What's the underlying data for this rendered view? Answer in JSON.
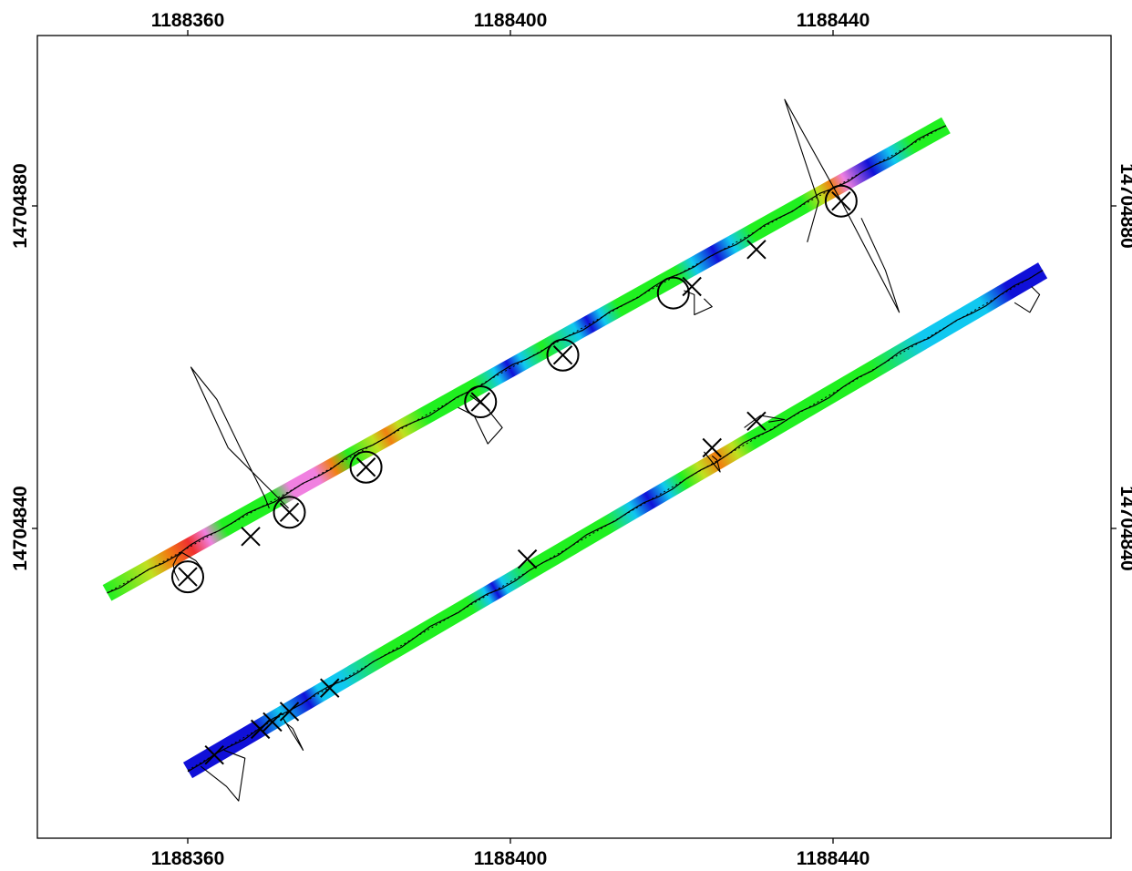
{
  "chart_data": {
    "type": "scatter",
    "title": "",
    "xlabel": "",
    "ylabel": "",
    "xlim": [
      1188341.5,
      1188474.5
    ],
    "ylim": [
      14704799.5,
      14704900.0
    ],
    "x_ticks": [
      {
        "value": 1188360,
        "label": "1188360"
      },
      {
        "value": 1188400,
        "label": "1188400"
      },
      {
        "value": 1188440,
        "label": "1188440"
      }
    ],
    "y_ticks": [
      {
        "value": 14704840,
        "label": "14704840"
      },
      {
        "value": 14704880,
        "label": "14704880"
      }
    ],
    "grid": false,
    "legend": "none",
    "colors": {
      "blue": "#1010d8",
      "cyan": "#10c8f0",
      "green": "#20f020",
      "yellow": "#c0e020",
      "orange": "#f08010",
      "red": "#f03030",
      "pink": "#f080e0",
      "frame": "#000000"
    },
    "swaths": [
      {
        "start": [
          1188350,
          14704832
        ],
        "end": [
          1188454,
          14704890
        ],
        "color_stops": [
          {
            "t": 0.0,
            "color": "green"
          },
          {
            "t": 0.05,
            "color": "yellow"
          },
          {
            "t": 0.075,
            "color": "orange"
          },
          {
            "t": 0.1,
            "color": "red"
          },
          {
            "t": 0.12,
            "color": "pink"
          },
          {
            "t": 0.14,
            "color": "green"
          },
          {
            "t": 0.2,
            "color": "green"
          },
          {
            "t": 0.22,
            "color": "pink"
          },
          {
            "t": 0.25,
            "color": "pink"
          },
          {
            "t": 0.27,
            "color": "orange"
          },
          {
            "t": 0.29,
            "color": "green"
          },
          {
            "t": 0.32,
            "color": "yellow"
          },
          {
            "t": 0.335,
            "color": "orange"
          },
          {
            "t": 0.35,
            "color": "yellow"
          },
          {
            "t": 0.38,
            "color": "green"
          },
          {
            "t": 0.44,
            "color": "green"
          },
          {
            "t": 0.465,
            "color": "cyan"
          },
          {
            "t": 0.48,
            "color": "blue"
          },
          {
            "t": 0.495,
            "color": "cyan"
          },
          {
            "t": 0.52,
            "color": "green"
          },
          {
            "t": 0.56,
            "color": "cyan"
          },
          {
            "t": 0.575,
            "color": "blue"
          },
          {
            "t": 0.59,
            "color": "cyan"
          },
          {
            "t": 0.61,
            "color": "green"
          },
          {
            "t": 0.68,
            "color": "green"
          },
          {
            "t": 0.7,
            "color": "cyan"
          },
          {
            "t": 0.725,
            "color": "blue"
          },
          {
            "t": 0.745,
            "color": "cyan"
          },
          {
            "t": 0.77,
            "color": "green"
          },
          {
            "t": 0.83,
            "color": "green"
          },
          {
            "t": 0.85,
            "color": "yellow"
          },
          {
            "t": 0.865,
            "color": "orange"
          },
          {
            "t": 0.88,
            "color": "pink"
          },
          {
            "t": 0.91,
            "color": "blue"
          },
          {
            "t": 0.935,
            "color": "cyan"
          },
          {
            "t": 0.96,
            "color": "green"
          },
          {
            "t": 1.0,
            "color": "green"
          }
        ]
      },
      {
        "start": [
          1188360,
          14704810
        ],
        "end": [
          1188466,
          14704872
        ],
        "color_stops": [
          {
            "t": 0.0,
            "color": "blue"
          },
          {
            "t": 0.08,
            "color": "blue"
          },
          {
            "t": 0.11,
            "color": "cyan"
          },
          {
            "t": 0.14,
            "color": "blue"
          },
          {
            "t": 0.155,
            "color": "cyan"
          },
          {
            "t": 0.18,
            "color": "cyan"
          },
          {
            "t": 0.23,
            "color": "green"
          },
          {
            "t": 0.33,
            "color": "green"
          },
          {
            "t": 0.35,
            "color": "cyan"
          },
          {
            "t": 0.36,
            "color": "blue"
          },
          {
            "t": 0.37,
            "color": "cyan"
          },
          {
            "t": 0.4,
            "color": "green"
          },
          {
            "t": 0.49,
            "color": "green"
          },
          {
            "t": 0.52,
            "color": "cyan"
          },
          {
            "t": 0.54,
            "color": "blue"
          },
          {
            "t": 0.56,
            "color": "cyan"
          },
          {
            "t": 0.58,
            "color": "green"
          },
          {
            "t": 0.6,
            "color": "yellow"
          },
          {
            "t": 0.62,
            "color": "orange"
          },
          {
            "t": 0.64,
            "color": "yellow"
          },
          {
            "t": 0.66,
            "color": "green"
          },
          {
            "t": 0.8,
            "color": "green"
          },
          {
            "t": 0.86,
            "color": "cyan"
          },
          {
            "t": 0.93,
            "color": "cyan"
          },
          {
            "t": 0.96,
            "color": "blue"
          },
          {
            "t": 1.0,
            "color": "blue"
          }
        ]
      }
    ],
    "x_markers": [
      [
        1188360.0,
        14704834.0
      ],
      [
        1188367.8,
        14704839.0
      ],
      [
        1188372.6,
        14704842.0
      ],
      [
        1188382.1,
        14704847.6
      ],
      [
        1188396.3,
        14704855.7
      ],
      [
        1188406.5,
        14704861.5
      ],
      [
        1188422.5,
        14704870.0
      ],
      [
        1188430.5,
        14704874.6
      ],
      [
        1188441.0,
        14704880.6
      ],
      [
        1188363.3,
        14704811.9
      ],
      [
        1188369.0,
        14704815.1
      ],
      [
        1188370.5,
        14704816.0
      ],
      [
        1188372.6,
        14704817.3
      ],
      [
        1188377.6,
        14704820.2
      ],
      [
        1188402.1,
        14704836.2
      ],
      [
        1188425.0,
        14704850.0
      ],
      [
        1188430.5,
        14704853.3
      ]
    ],
    "circle_markers": [
      [
        1188360.0,
        14704834.0
      ],
      [
        1188372.6,
        14704842.0
      ],
      [
        1188382.1,
        14704847.6
      ],
      [
        1188396.3,
        14704855.7
      ],
      [
        1188406.5,
        14704861.5
      ],
      [
        1188420.2,
        14704869.2
      ],
      [
        1188441.0,
        14704880.6
      ]
    ],
    "profile_curves": [
      {
        "x": [
          1188358.9,
          1188358.4,
          1188358.2,
          1188358.7,
          1188359.3,
          1188361.0,
          1188361.8
        ],
        "y": [
          14704833.5,
          14704834.5,
          14704835.5,
          14704836.5,
          14704837.0,
          14704836.0,
          14704835.0
        ]
      },
      {
        "x": [
          1188370.1,
          1188369.5,
          1188366.5,
          1188363.6,
          1188360.4,
          1188365.0,
          1188372.5
        ],
        "y": [
          14704842.5,
          14704844.0,
          14704850.0,
          14704856.0,
          14704860.0,
          14704850.0,
          14704842.5
        ]
      },
      {
        "x": [
          1188393.5,
          1188395.5,
          1188397.2,
          1188399.0,
          1188397.0,
          1188395.0
        ],
        "y": [
          14704855.0,
          14704854.0,
          14704850.5,
          14704852.5,
          14704855.0,
          14704856.5
        ]
      },
      {
        "x": [
          1188421.5,
          1188422.8,
          1188422.8,
          1188425.0,
          1188424.0
        ],
        "y": [
          14704869.5,
          14704869.0,
          14704866.5,
          14704867.5,
          14704868.5
        ]
      },
      {
        "x": [
          1188436.8,
          1188438.2,
          1188434.0,
          1188441.0,
          1188448.2,
          1188446.5,
          1188443.5
        ],
        "y": [
          14704875.5,
          14704880.5,
          14704893.2,
          14704880.6,
          14704866.8,
          14704872.0,
          14704878.5
        ]
      },
      {
        "x": [
          1188361.6,
          1188364.8,
          1188366.3,
          1188367.1,
          1188365.8,
          1188364.5
        ],
        "y": [
          14704810.5,
          14704808.0,
          14704806.2,
          14704811.5,
          14704812.0,
          14704812.5
        ]
      },
      {
        "x": [
          1188371.8,
          1188374.3,
          1188373.0,
          1188372.0
        ],
        "y": [
          14704816.5,
          14704812.5,
          14704815.2,
          14704816.0
        ]
      },
      {
        "x": [
          1188424.0,
          1188426.0,
          1188425.6,
          1188425.0
        ],
        "y": [
          14704849.5,
          14704847.0,
          14704848.5,
          14704849.0
        ]
      },
      {
        "x": [
          1188429.0,
          1188431.0,
          1188434.0,
          1188432.0
        ],
        "y": [
          14704852.5,
          14704854.0,
          14704853.5,
          14704853.2
        ]
      },
      {
        "x": [
          1188462.5,
          1188464.4,
          1188465.6,
          1188464.6
        ],
        "y": [
          14704868.0,
          14704866.8,
          14704869.0,
          14704870.0
        ]
      }
    ]
  }
}
